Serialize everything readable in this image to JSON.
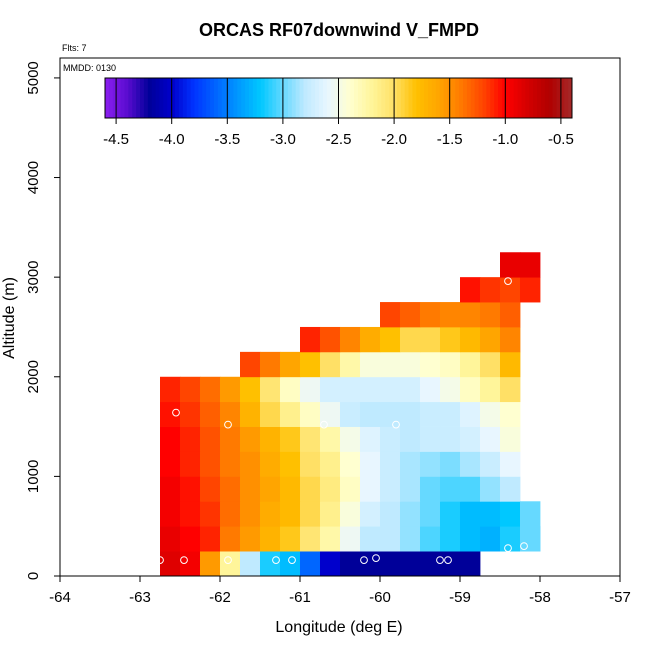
{
  "chart_data": {
    "type": "heatmap",
    "title": "ORCAS RF07downwind V_FMPD",
    "subtitle_flights": "Flts: 7",
    "date_label": "MMDD: 0130",
    "xlabel": "Longitude (deg E)",
    "ylabel": "Altitude (m)",
    "xlim": [
      -64,
      -57
    ],
    "ylim": [
      0,
      5200
    ],
    "x_ticks": [
      -64,
      -63,
      -62,
      -61,
      -60,
      -59,
      -58,
      -57
    ],
    "y_ticks": [
      0,
      1000,
      2000,
      3000,
      4000,
      5000
    ],
    "colorbar": {
      "min": -4.6,
      "max": -0.4,
      "ticks": [
        -4.5,
        -4.0,
        -3.5,
        -3.0,
        -2.5,
        -2.0,
        -1.5,
        -1.0,
        -0.5
      ],
      "tick_labels": [
        "-4.5",
        "-4.0",
        "-3.5",
        "-3.0",
        "-2.5",
        "-2.0",
        "-1.5",
        "-1.0",
        "-0.5"
      ],
      "colors": [
        "#8B1FF0",
        "#5A0CD0",
        "#000099",
        "#0000CC",
        "#0033FF",
        "#0066FF",
        "#0099FF",
        "#00C8FF",
        "#66D9FF",
        "#BFEAFF",
        "#E8F6FF",
        "#FFFFD0",
        "#FFF59A",
        "#FFE066",
        "#FFC000",
        "#FFA500",
        "#FF7A00",
        "#FF4500",
        "#FF0000",
        "#D40000",
        "#B00000",
        "#A52A2A"
      ]
    },
    "grid": {
      "x_start": -62.75,
      "dx": 0.25,
      "y_start": 0,
      "dy": 250,
      "rows": [
        {
          "row": 0,
          "start": 0,
          "values": [
            -0.85,
            -0.95,
            -1.55,
            -2.2,
            -2.8,
            -3.15,
            -3.25,
            -3.6,
            -4.0,
            -4.2,
            -4.2,
            -4.2,
            -4.2,
            -4.2,
            -4.2,
            -4.2
          ]
        },
        {
          "row": 1,
          "start": 0,
          "values": [
            -0.9,
            -1.0,
            -1.1,
            -1.4,
            -1.55,
            -1.7,
            -1.85,
            -2.05,
            -2.25,
            -2.55,
            -2.8,
            -2.8,
            -2.9,
            -3.05,
            -3.15,
            -3.25,
            -3.3,
            -3.15,
            -3.0
          ]
        },
        {
          "row": 2,
          "start": 0,
          "values": [
            -0.95,
            -1.05,
            -1.15,
            -1.35,
            -1.5,
            -1.65,
            -1.75,
            -1.95,
            -2.15,
            -2.45,
            -2.7,
            -2.8,
            -2.9,
            -3.0,
            -3.15,
            -3.25,
            -3.25,
            -3.2
          ]
        },
        {
          "row": 3,
          "start": 0,
          "values": [
            -0.95,
            -1.05,
            -1.2,
            -1.35,
            -1.5,
            -1.6,
            -1.75,
            -1.95,
            -2.1,
            -2.35,
            -2.6,
            -2.75,
            -2.85,
            -3.0,
            -3.05,
            -3.05,
            -2.9,
            -2.8
          ]
        },
        {
          "row": 4,
          "start": 0,
          "values": [
            -1.0,
            -1.1,
            -1.25,
            -1.4,
            -1.5,
            -1.65,
            -1.8,
            -2.0,
            -2.15,
            -2.4,
            -2.6,
            -2.75,
            -2.85,
            -2.9,
            -2.95,
            -2.85,
            -2.75,
            -2.6
          ]
        },
        {
          "row": 5,
          "start": 0,
          "values": [
            -1.0,
            -1.1,
            -1.25,
            -1.4,
            -1.55,
            -1.7,
            -1.85,
            -2.05,
            -2.25,
            -2.5,
            -2.65,
            -2.75,
            -2.8,
            -2.75,
            -2.75,
            -2.7,
            -2.6,
            -2.45
          ]
        },
        {
          "row": 6,
          "start": 0,
          "values": [
            -1.05,
            -1.15,
            -1.3,
            -1.45,
            -1.7,
            -1.95,
            -2.15,
            -2.35,
            -2.55,
            -2.75,
            -2.8,
            -2.8,
            -2.8,
            -2.75,
            -2.75,
            -2.65,
            -2.5,
            -2.4
          ]
        },
        {
          "row": 7,
          "start": 0,
          "values": [
            -1.1,
            -1.2,
            -1.35,
            -1.55,
            -1.8,
            -2.05,
            -2.35,
            -2.55,
            -2.7,
            -2.7,
            -2.7,
            -2.7,
            -2.7,
            -2.6,
            -2.5,
            -2.35,
            -2.2,
            -2.0
          ]
        },
        {
          "row": 8,
          "start": 4,
          "values": [
            -1.2,
            -1.4,
            -1.6,
            -1.8,
            -2.0,
            -2.25,
            -2.45,
            -2.45,
            -2.45,
            -2.4,
            -2.35,
            -2.2,
            -2.0,
            -1.75
          ]
        },
        {
          "row": 9,
          "start": 7,
          "values": [
            -1.1,
            -1.25,
            -1.45,
            -1.65,
            -1.8,
            -1.95,
            -1.95,
            -1.85,
            -1.75,
            -1.6,
            -1.45
          ]
        },
        {
          "row": 10,
          "start": 11,
          "values": [
            -1.2,
            -1.3,
            -1.4,
            -1.45,
            -1.45,
            -1.4,
            -1.3
          ]
        },
        {
          "row": 11,
          "start": 15,
          "values": [
            -1.05,
            -1.15,
            -1.2,
            -1.1
          ]
        },
        {
          "row": 12,
          "start": 17,
          "values": [
            -0.9,
            -0.9
          ]
        }
      ],
      "extra_cells": [
        {
          "x": -58.25,
          "y": 250,
          "value": -3.0
        },
        {
          "x": -58.25,
          "y": 500,
          "value": -3.0
        }
      ]
    },
    "sample_points": [
      [
        -62.75,
        160
      ],
      [
        -62.45,
        160
      ],
      [
        -61.9,
        160
      ],
      [
        -61.3,
        160
      ],
      [
        -61.1,
        160
      ],
      [
        -60.2,
        160
      ],
      [
        -60.05,
        180
      ],
      [
        -59.25,
        160
      ],
      [
        -59.15,
        160
      ],
      [
        -62.55,
        1640
      ],
      [
        -61.9,
        1520
      ],
      [
        -60.7,
        1520
      ],
      [
        -59.8,
        1520
      ],
      [
        -58.4,
        280
      ],
      [
        -58.2,
        300
      ],
      [
        -58.4,
        2960
      ]
    ]
  }
}
